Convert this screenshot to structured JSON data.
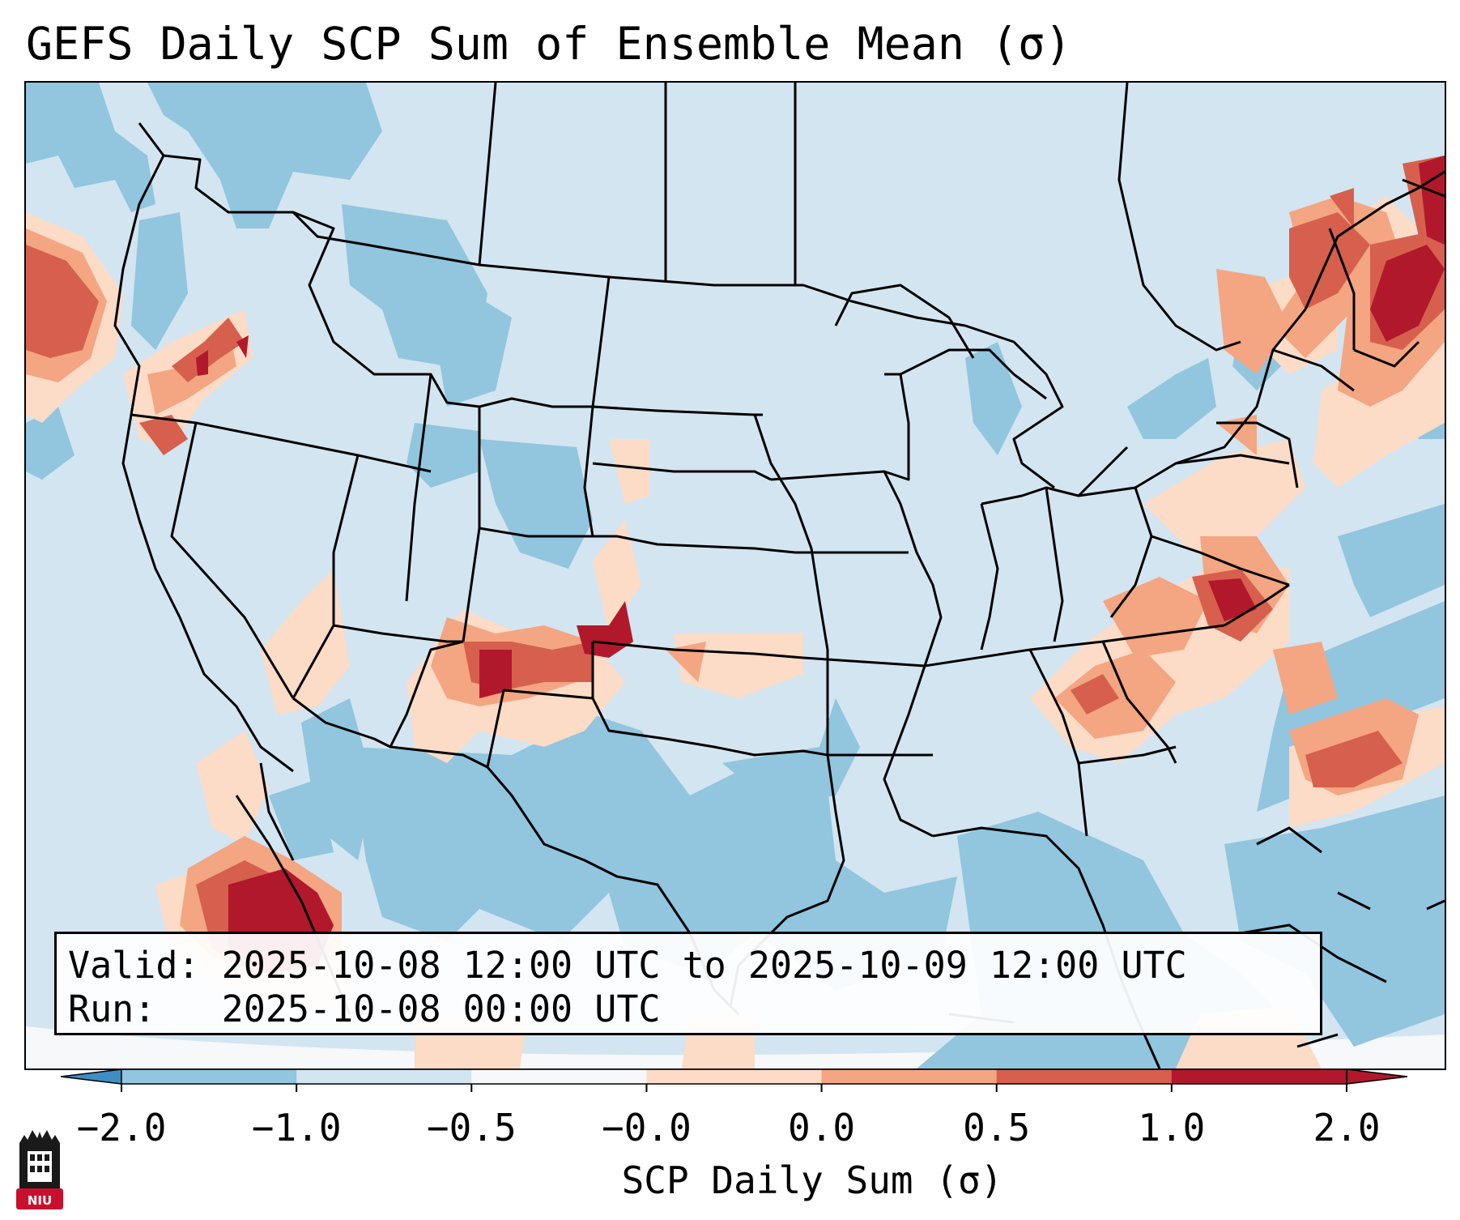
{
  "title": "GEFS Daily SCP Sum of Ensemble Mean (σ)",
  "info": {
    "valid_label": "Valid:",
    "valid_value": "2025-10-08 12:00 UTC to 2025-10-09 12:00 UTC",
    "run_label": "Run:",
    "run_value": "2025-10-08 00:00 UTC"
  },
  "colorbar": {
    "title": "SCP Daily Sum (σ)",
    "ticks": [
      "−2.0",
      "−1.0",
      "−0.5",
      "−0.0",
      "0.0",
      "0.5",
      "1.0",
      "2.0"
    ],
    "colors": [
      "#3f8ec3",
      "#92c5de",
      "#d3e5f0",
      "#f6f8fa",
      "#fcdbc7",
      "#f4a582",
      "#d6604d",
      "#b2182b"
    ]
  },
  "logo": {
    "text": "NIU"
  },
  "map": {
    "projection": "Lambert Conformal over CONUS",
    "land_background": "#d3e5f0",
    "ocean_background": "#d3e5f0",
    "outside_projection": "#f6f8fa"
  }
}
